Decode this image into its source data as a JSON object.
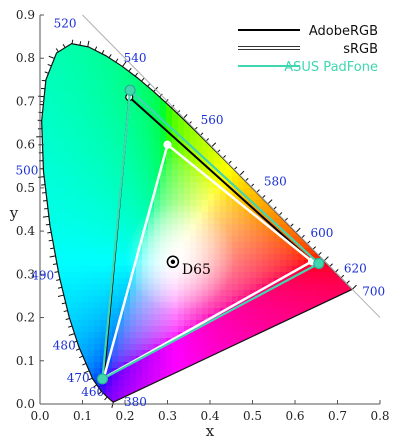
{
  "chart_data": {
    "type": "scatter",
    "title": "",
    "xlabel": "x",
    "ylabel": "y",
    "xlim": [
      0.0,
      0.8
    ],
    "ylim": [
      0.0,
      0.9
    ],
    "x_ticks": [
      "0.0",
      "0.1",
      "0.2",
      "0.3",
      "0.4",
      "0.5",
      "0.6",
      "0.7",
      "0.8"
    ],
    "y_ticks": [
      "0.0",
      "0.1",
      "0.2",
      "0.3",
      "0.4",
      "0.5",
      "0.6",
      "0.7",
      "0.8",
      "0.9"
    ],
    "locus": [
      [
        0.1741,
        0.005
      ],
      [
        0.1738,
        0.0049
      ],
      [
        0.1736,
        0.0049
      ],
      [
        0.1733,
        0.0048
      ],
      [
        0.1726,
        0.0048
      ],
      [
        0.1714,
        0.0051
      ],
      [
        0.1689,
        0.0069
      ],
      [
        0.1644,
        0.0109
      ],
      [
        0.1566,
        0.0177
      ],
      [
        0.144,
        0.0297
      ],
      [
        0.1241,
        0.0578
      ],
      [
        0.0913,
        0.1327
      ],
      [
        0.0687,
        0.2007
      ],
      [
        0.0454,
        0.295
      ],
      [
        0.0235,
        0.4127
      ],
      [
        0.0082,
        0.5384
      ],
      [
        0.0039,
        0.6548
      ],
      [
        0.0139,
        0.7502
      ],
      [
        0.0389,
        0.812
      ],
      [
        0.0743,
        0.8338
      ],
      [
        0.1142,
        0.8262
      ],
      [
        0.1547,
        0.8059
      ],
      [
        0.1929,
        0.7816
      ],
      [
        0.2296,
        0.7543
      ],
      [
        0.2658,
        0.7243
      ],
      [
        0.3016,
        0.6923
      ],
      [
        0.3373,
        0.6589
      ],
      [
        0.3731,
        0.6245
      ],
      [
        0.4087,
        0.5896
      ],
      [
        0.4441,
        0.5547
      ],
      [
        0.4788,
        0.5202
      ],
      [
        0.5125,
        0.4866
      ],
      [
        0.5448,
        0.4544
      ],
      [
        0.5752,
        0.4242
      ],
      [
        0.6029,
        0.3965
      ],
      [
        0.627,
        0.3725
      ],
      [
        0.6482,
        0.3514
      ],
      [
        0.6658,
        0.334
      ],
      [
        0.6801,
        0.3197
      ],
      [
        0.6915,
        0.3083
      ],
      [
        0.7006,
        0.2993
      ],
      [
        0.7079,
        0.292
      ],
      [
        0.714,
        0.2859
      ],
      [
        0.719,
        0.2809
      ],
      [
        0.723,
        0.277
      ],
      [
        0.726,
        0.274
      ],
      [
        0.7283,
        0.2717
      ],
      [
        0.73,
        0.27
      ],
      [
        0.7311,
        0.2689
      ],
      [
        0.732,
        0.268
      ],
      [
        0.7327,
        0.2673
      ],
      [
        0.7334,
        0.2666
      ],
      [
        0.734,
        0.266
      ],
      [
        0.7344,
        0.2656
      ],
      [
        0.7346,
        0.2654
      ],
      [
        0.7347,
        0.2653
      ]
    ],
    "wavelength_labels": [
      {
        "label": "380",
        "x": 0.1741,
        "y": 0.005
      },
      {
        "label": "460",
        "x": 0.144,
        "y": 0.0297
      },
      {
        "label": "470",
        "x": 0.1241,
        "y": 0.0578
      },
      {
        "label": "480",
        "x": 0.0913,
        "y": 0.1327
      },
      {
        "label": "490",
        "x": 0.0454,
        "y": 0.295
      },
      {
        "label": "500",
        "x": 0.0082,
        "y": 0.5384
      },
      {
        "label": "520",
        "x": 0.0743,
        "y": 0.8338
      },
      {
        "label": "540",
        "x": 0.2296,
        "y": 0.7543
      },
      {
        "label": "560",
        "x": 0.3731,
        "y": 0.6245
      },
      {
        "label": "580",
        "x": 0.5125,
        "y": 0.4866
      },
      {
        "label": "600",
        "x": 0.627,
        "y": 0.3725
      },
      {
        "label": "620",
        "x": 0.6915,
        "y": 0.3083
      },
      {
        "label": "700",
        "x": 0.7347,
        "y": 0.2653
      }
    ],
    "white_point": {
      "label": "D65",
      "x": 0.3127,
      "y": 0.329
    },
    "series": [
      {
        "name": "AdobeRGB",
        "color": "#000000",
        "points": [
          [
            0.64,
            0.33
          ],
          [
            0.21,
            0.71
          ],
          [
            0.15,
            0.06
          ]
        ]
      },
      {
        "name": "sRGB",
        "color": "#ffffff",
        "points": [
          [
            0.64,
            0.33
          ],
          [
            0.3,
            0.6
          ],
          [
            0.15,
            0.06
          ]
        ]
      },
      {
        "name": "ASUS PadFone",
        "color": "#3fd6b0",
        "points": [
          [
            0.656,
            0.325
          ],
          [
            0.212,
            0.726
          ],
          [
            0.147,
            0.058
          ]
        ]
      }
    ],
    "grid": false,
    "legend": "top-right"
  }
}
